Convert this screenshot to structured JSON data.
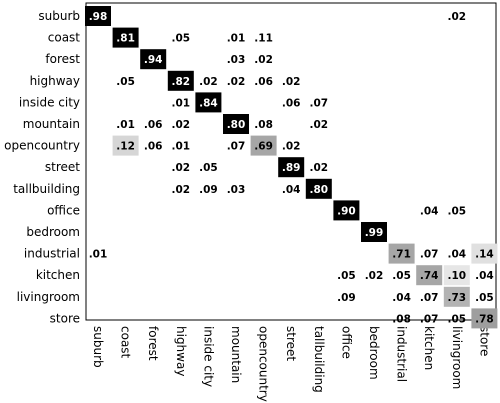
{
  "chart_data": {
    "type": "heatmap",
    "title": "",
    "xlabel": "",
    "ylabel": "",
    "labels": [
      "suburb",
      "coast",
      "forest",
      "highway",
      "inside city",
      "mountain",
      "opencountry",
      "street",
      "tallbuilding",
      "office",
      "bedroom",
      "industrial",
      "kitchen",
      "livingroom",
      "store"
    ],
    "cells": [
      {
        "row": 0,
        "col": 0,
        "value": 0.98,
        "text": ".98"
      },
      {
        "row": 0,
        "col": 13,
        "value": 0.02,
        "text": ".02"
      },
      {
        "row": 1,
        "col": 1,
        "value": 0.81,
        "text": ".81"
      },
      {
        "row": 1,
        "col": 3,
        "value": 0.05,
        "text": ".05"
      },
      {
        "row": 1,
        "col": 5,
        "value": 0.01,
        "text": ".01"
      },
      {
        "row": 1,
        "col": 6,
        "value": 0.11,
        "text": ".11"
      },
      {
        "row": 2,
        "col": 2,
        "value": 0.94,
        "text": ".94"
      },
      {
        "row": 2,
        "col": 5,
        "value": 0.03,
        "text": ".03"
      },
      {
        "row": 2,
        "col": 6,
        "value": 0.02,
        "text": ".02"
      },
      {
        "row": 3,
        "col": 1,
        "value": 0.05,
        "text": ".05"
      },
      {
        "row": 3,
        "col": 3,
        "value": 0.82,
        "text": ".82"
      },
      {
        "row": 3,
        "col": 4,
        "value": 0.02,
        "text": ".02"
      },
      {
        "row": 3,
        "col": 5,
        "value": 0.02,
        "text": ".02"
      },
      {
        "row": 3,
        "col": 6,
        "value": 0.06,
        "text": ".06"
      },
      {
        "row": 3,
        "col": 7,
        "value": 0.02,
        "text": ".02"
      },
      {
        "row": 4,
        "col": 3,
        "value": 0.01,
        "text": ".01"
      },
      {
        "row": 4,
        "col": 4,
        "value": 0.84,
        "text": ".84"
      },
      {
        "row": 4,
        "col": 7,
        "value": 0.06,
        "text": ".06"
      },
      {
        "row": 4,
        "col": 8,
        "value": 0.07,
        "text": ".07"
      },
      {
        "row": 5,
        "col": 1,
        "value": 0.01,
        "text": ".01"
      },
      {
        "row": 5,
        "col": 2,
        "value": 0.06,
        "text": ".06"
      },
      {
        "row": 5,
        "col": 3,
        "value": 0.02,
        "text": ".02"
      },
      {
        "row": 5,
        "col": 5,
        "value": 0.8,
        "text": ".80"
      },
      {
        "row": 5,
        "col": 6,
        "value": 0.08,
        "text": ".08"
      },
      {
        "row": 5,
        "col": 8,
        "value": 0.02,
        "text": ".02"
      },
      {
        "row": 6,
        "col": 1,
        "value": 0.12,
        "text": ".12"
      },
      {
        "row": 6,
        "col": 2,
        "value": 0.06,
        "text": ".06"
      },
      {
        "row": 6,
        "col": 3,
        "value": 0.01,
        "text": ".01"
      },
      {
        "row": 6,
        "col": 5,
        "value": 0.07,
        "text": ".07"
      },
      {
        "row": 6,
        "col": 6,
        "value": 0.69,
        "text": ".69"
      },
      {
        "row": 6,
        "col": 7,
        "value": 0.02,
        "text": ".02"
      },
      {
        "row": 7,
        "col": 3,
        "value": 0.02,
        "text": ".02"
      },
      {
        "row": 7,
        "col": 4,
        "value": 0.05,
        "text": ".05"
      },
      {
        "row": 7,
        "col": 7,
        "value": 0.89,
        "text": ".89"
      },
      {
        "row": 7,
        "col": 8,
        "value": 0.02,
        "text": ".02"
      },
      {
        "row": 8,
        "col": 3,
        "value": 0.02,
        "text": ".02"
      },
      {
        "row": 8,
        "col": 4,
        "value": 0.09,
        "text": ".09"
      },
      {
        "row": 8,
        "col": 5,
        "value": 0.03,
        "text": ".03"
      },
      {
        "row": 8,
        "col": 7,
        "value": 0.04,
        "text": ".04"
      },
      {
        "row": 8,
        "col": 8,
        "value": 0.8,
        "text": ".80"
      },
      {
        "row": 9,
        "col": 9,
        "value": 0.9,
        "text": ".90"
      },
      {
        "row": 9,
        "col": 12,
        "value": 0.04,
        "text": ".04"
      },
      {
        "row": 9,
        "col": 13,
        "value": 0.05,
        "text": ".05"
      },
      {
        "row": 10,
        "col": 10,
        "value": 0.99,
        "text": ".99"
      },
      {
        "row": 11,
        "col": 0,
        "value": 0.01,
        "text": ".01"
      },
      {
        "row": 11,
        "col": 11,
        "value": 0.71,
        "text": ".71"
      },
      {
        "row": 11,
        "col": 12,
        "value": 0.07,
        "text": ".07"
      },
      {
        "row": 11,
        "col": 13,
        "value": 0.04,
        "text": ".04"
      },
      {
        "row": 11,
        "col": 14,
        "value": 0.14,
        "text": ".14"
      },
      {
        "row": 12,
        "col": 9,
        "value": 0.05,
        "text": ".05"
      },
      {
        "row": 12,
        "col": 10,
        "value": 0.02,
        "text": ".02"
      },
      {
        "row": 12,
        "col": 11,
        "value": 0.05,
        "text": ".05"
      },
      {
        "row": 12,
        "col": 12,
        "value": 0.74,
        "text": ".74"
      },
      {
        "row": 12,
        "col": 13,
        "value": 0.1,
        "text": ".10"
      },
      {
        "row": 12,
        "col": 14,
        "value": 0.04,
        "text": ".04"
      },
      {
        "row": 13,
        "col": 9,
        "value": 0.09,
        "text": ".09"
      },
      {
        "row": 13,
        "col": 11,
        "value": 0.04,
        "text": ".04"
      },
      {
        "row": 13,
        "col": 12,
        "value": 0.07,
        "text": ".07"
      },
      {
        "row": 13,
        "col": 13,
        "value": 0.73,
        "text": ".73"
      },
      {
        "row": 13,
        "col": 14,
        "value": 0.05,
        "text": ".05"
      },
      {
        "row": 14,
        "col": 11,
        "value": 0.08,
        "text": ".08"
      },
      {
        "row": 14,
        "col": 12,
        "value": 0.07,
        "text": ".07"
      },
      {
        "row": 14,
        "col": 13,
        "value": 0.05,
        "text": ".05"
      },
      {
        "row": 14,
        "col": 14,
        "value": 0.78,
        "text": ".78"
      }
    ],
    "cell_colors": {
      "0-0": "#000000",
      "1-1": "#000000",
      "2-2": "#000000",
      "3-3": "#000000",
      "4-4": "#000000",
      "5-5": "#000000",
      "6-6": "#a6a6a6",
      "6-1": "#d6d6d6",
      "7-7": "#000000",
      "8-8": "#000000",
      "9-9": "#000000",
      "10-10": "#000000",
      "11-11": "#a6a6a6",
      "11-14": "#e0e0e0",
      "12-12": "#a6a6a6",
      "12-13": "#e6e6e6",
      "13-13": "#b3b3b3",
      "14-14": "#9e9e9e"
    },
    "grid": false,
    "legend": "none"
  }
}
